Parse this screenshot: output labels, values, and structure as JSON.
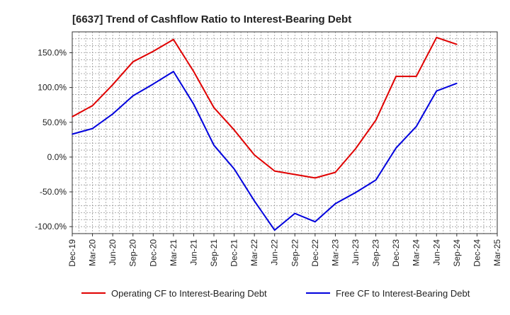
{
  "chart_data": {
    "type": "line",
    "title": "[6637]  Trend of Cashflow Ratio to Interest-Bearing Debt",
    "xlabel": "",
    "ylabel": "",
    "ylim": [
      -110,
      180
    ],
    "y_ticks": [
      150,
      100,
      50,
      0,
      -50,
      -100
    ],
    "y_tick_labels": [
      "150.0%",
      "100.0%",
      "50.0%",
      "0.0%",
      "-50.0%",
      "-100.0%"
    ],
    "x_tick_labels": [
      "Dec-19",
      "Mar-20",
      "Jun-20",
      "Sep-20",
      "Dec-20",
      "Mar-21",
      "Jun-21",
      "Sep-21",
      "Dec-21",
      "Mar-22",
      "Jun-22",
      "Sep-22",
      "Dec-22",
      "Mar-23",
      "Jun-23",
      "Sep-23",
      "Dec-23",
      "Mar-24",
      "Jun-24",
      "Sep-24",
      "Dec-24",
      "Mar-25"
    ],
    "grid": true,
    "legend_position": "bottom",
    "series": [
      {
        "name": "Operating CF to Interest-Bearing Debt",
        "color": "#e00000",
        "values": [
          58,
          74,
          104,
          137,
          152,
          169,
          123,
          71,
          39,
          3,
          -20,
          -25,
          -30,
          -22,
          12,
          53,
          116,
          116,
          172,
          162,
          null,
          null
        ]
      },
      {
        "name": "Free CF to Interest-Bearing Debt",
        "color": "#0000dd",
        "values": [
          33,
          41,
          62,
          88,
          105,
          123,
          76,
          17,
          -17,
          -63,
          -105,
          -81,
          -93,
          -67,
          -51,
          -33,
          13,
          44,
          95,
          106,
          null,
          null
        ]
      }
    ]
  }
}
